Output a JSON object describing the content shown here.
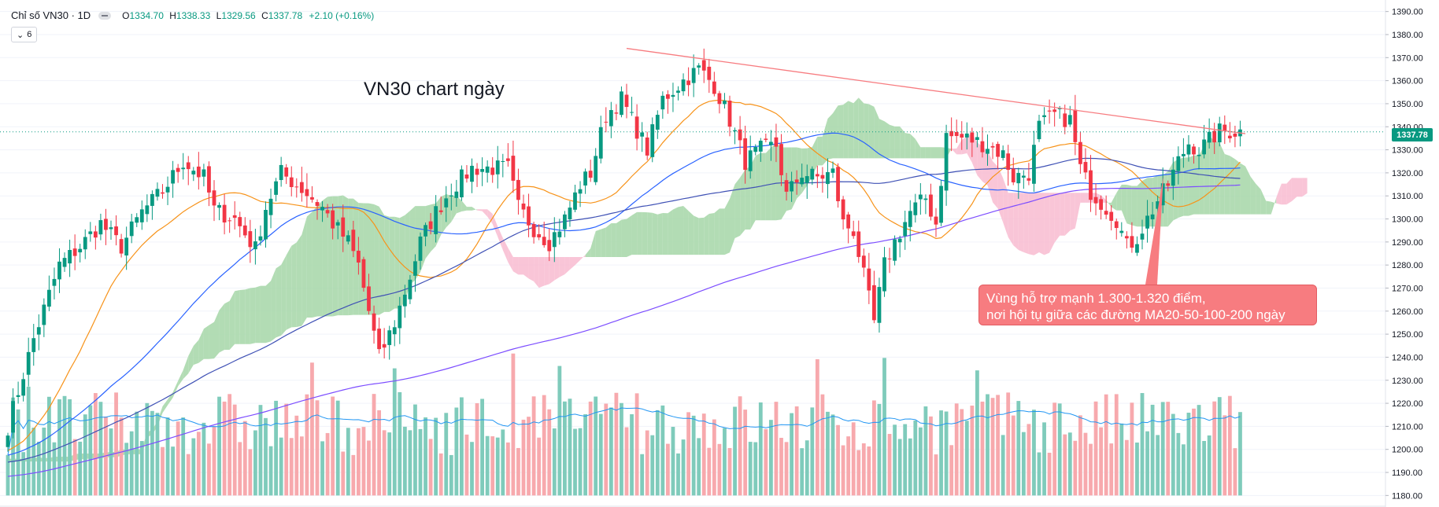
{
  "header": {
    "symbol": "Chỉ số VN30 · 1D",
    "open_label": "O",
    "open": "1334.70",
    "high_label": "H",
    "high": "1338.33",
    "low_label": "L",
    "low": "1329.56",
    "close_label": "C",
    "close": "1337.78",
    "change": "+2.10 (+0.16%)",
    "indicator_count": "6"
  },
  "current_price": "1337.78",
  "colors": {
    "up": "#089981",
    "down": "#f23645",
    "ma_short": "#f7931a",
    "ma_mid": "#2962ff",
    "ma_long": "#7c4dff",
    "cloud_bull": "#a5d6a7",
    "cloud_bear": "#f8bbd0",
    "trendline": "#f77c80",
    "volume_up": "#7fcbbb",
    "volume_down": "#f7a9ad",
    "volume_ma": "#2196f3"
  },
  "chart_data": {
    "type": "candlestick",
    "title": "VN30 chart ngày",
    "annotation": {
      "line1": "Vùng hỗ trợ mạnh 1.300-1.320 điểm,",
      "line2": "nơi hội tụ giữa các đường MA20-50-100-200 ngày"
    },
    "y_axis": {
      "min": 1175,
      "max": 1395,
      "ticks": [
        "1390.00",
        "1380.00",
        "1370.00",
        "1360.00",
        "1350.00",
        "1340.00",
        "1330.00",
        "1320.00",
        "1310.00",
        "1300.00",
        "1290.00",
        "1280.00",
        "1270.00",
        "1260.00",
        "1250.00",
        "1240.00",
        "1230.00",
        "1220.00",
        "1210.00",
        "1200.00",
        "1190.00",
        "1180.00"
      ]
    },
    "close_anchors": [
      [
        0,
        1210
      ],
      [
        5,
        1248
      ],
      [
        10,
        1280
      ],
      [
        14,
        1288
      ],
      [
        18,
        1298
      ],
      [
        22,
        1288
      ],
      [
        26,
        1303
      ],
      [
        30,
        1312
      ],
      [
        34,
        1325
      ],
      [
        38,
        1318
      ],
      [
        40,
        1304
      ],
      [
        44,
        1300
      ],
      [
        48,
        1287
      ],
      [
        50,
        1305
      ],
      [
        53,
        1320
      ],
      [
        57,
        1313
      ],
      [
        61,
        1305
      ],
      [
        63,
        1298
      ],
      [
        66,
        1290
      ],
      [
        68,
        1280
      ],
      [
        72,
        1240
      ],
      [
        75,
        1255
      ],
      [
        78,
        1275
      ],
      [
        80,
        1290
      ],
      [
        83,
        1303
      ],
      [
        86,
        1313
      ],
      [
        90,
        1322
      ],
      [
        94,
        1322
      ],
      [
        97,
        1322
      ],
      [
        99,
        1305
      ],
      [
        102,
        1296
      ],
      [
        105,
        1290
      ],
      [
        108,
        1300
      ],
      [
        111,
        1315
      ],
      [
        113,
        1320
      ],
      [
        116,
        1345
      ],
      [
        119,
        1352
      ],
      [
        121,
        1343
      ],
      [
        124,
        1330
      ],
      [
        127,
        1352
      ],
      [
        131,
        1360
      ],
      [
        134,
        1365
      ],
      [
        137,
        1358
      ],
      [
        140,
        1343
      ],
      [
        143,
        1325
      ],
      [
        146,
        1330
      ],
      [
        149,
        1332
      ],
      [
        151,
        1310
      ],
      [
        154,
        1320
      ],
      [
        157,
        1318
      ],
      [
        160,
        1320
      ],
      [
        162,
        1298
      ],
      [
        164,
        1295
      ],
      [
        166,
        1275
      ],
      [
        168,
        1255
      ],
      [
        170,
        1280
      ],
      [
        172,
        1290
      ],
      [
        175,
        1303
      ],
      [
        178,
        1309
      ],
      [
        180,
        1298
      ],
      [
        182,
        1336
      ],
      [
        186,
        1335
      ],
      [
        190,
        1332
      ],
      [
        193,
        1328
      ],
      [
        195,
        1318
      ],
      [
        198,
        1320
      ],
      [
        200,
        1340
      ],
      [
        203,
        1345
      ],
      [
        206,
        1343
      ],
      [
        208,
        1322
      ],
      [
        210,
        1312
      ],
      [
        213,
        1305
      ],
      [
        215,
        1300
      ],
      [
        217,
        1288
      ],
      [
        219,
        1292
      ],
      [
        221,
        1300
      ],
      [
        223,
        1308
      ],
      [
        225,
        1315
      ],
      [
        227,
        1325
      ],
      [
        229,
        1333
      ],
      [
        231,
        1330
      ],
      [
        233,
        1334
      ],
      [
        235,
        1338
      ]
    ],
    "volume_axis": {
      "baseline": 1180,
      "top": 1230
    },
    "ichimoku": {
      "displacement": 26
    },
    "moving_averages": [
      {
        "name": "MA20",
        "period": 20,
        "color": "#f7931a"
      },
      {
        "name": "MA50",
        "period": 50,
        "color": "#2962ff"
      },
      {
        "name": "MA100",
        "period": 100,
        "color": "#3f51b5"
      },
      {
        "name": "MA200",
        "period": 200,
        "color": "#7c4dff"
      }
    ],
    "trendline": {
      "from": {
        "bar": 120,
        "price": 1374
      },
      "to": {
        "bar": 240,
        "price": 1337
      }
    },
    "support_zone": [
      1300,
      1320
    ]
  }
}
